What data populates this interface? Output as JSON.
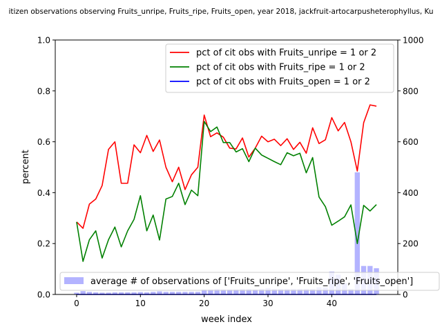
{
  "chart_data": {
    "type": "line",
    "title": "itizen observations observing Fruits_unripe, Fruits_ripe, Fruits_open, year 2018, jackfruit-artocarpusheterophyllus, Ku",
    "xlabel": "week index",
    "ylabel": "percent",
    "xlim": [
      -3.35,
      50.35
    ],
    "ylim": [
      0,
      1
    ],
    "y2lim": [
      0,
      1000
    ],
    "x_ticks": [
      "0",
      "10",
      "20",
      "30",
      "40"
    ],
    "y_ticks": [
      "0.0",
      "0.2",
      "0.4",
      "0.6",
      "0.8",
      "1.0"
    ],
    "y2_ticks": [
      "0",
      "200",
      "400",
      "600",
      "800",
      "1000"
    ],
    "x_tick_values": [
      0,
      10,
      20,
      30,
      40
    ],
    "y_tick_values": [
      0,
      0.2,
      0.4,
      0.6,
      0.8,
      1.0
    ],
    "y2_tick_values": [
      0,
      200,
      400,
      600,
      800,
      1000
    ],
    "legend_position": "top-right",
    "bar_legend_position": "bottom",
    "series": [
      {
        "name": "pct of cit obs with Fruits_unripe = 1 or 2",
        "color": "#ff0000",
        "values": [
          0.285,
          0.26,
          0.355,
          0.375,
          0.428,
          0.57,
          0.6,
          0.437,
          0.437,
          0.588,
          0.557,
          0.625,
          0.562,
          0.607,
          0.5,
          0.443,
          0.5,
          0.412,
          0.47,
          0.5,
          0.705,
          0.62,
          0.635,
          0.618,
          0.575,
          0.572,
          0.615,
          0.54,
          0.575,
          0.622,
          0.6,
          0.61,
          0.585,
          0.612,
          0.57,
          0.598,
          0.555,
          0.655,
          0.593,
          0.608,
          0.695,
          0.643,
          0.676,
          0.6,
          0.485,
          0.675,
          0.745,
          0.74
        ]
      },
      {
        "name": "pct of cit obs with Fruits_ripe = 1 or 2",
        "color": "#008000",
        "values": [
          0.285,
          0.13,
          0.215,
          0.25,
          0.143,
          0.215,
          0.265,
          0.187,
          0.25,
          0.295,
          0.388,
          0.25,
          0.312,
          0.214,
          0.375,
          0.385,
          0.437,
          0.353,
          0.41,
          0.388,
          0.68,
          0.64,
          0.658,
          0.597,
          0.597,
          0.56,
          0.573,
          0.522,
          0.575,
          0.548,
          0.535,
          0.522,
          0.51,
          0.557,
          0.545,
          0.555,
          0.478,
          0.538,
          0.383,
          0.345,
          0.272,
          0.288,
          0.305,
          0.352,
          0.2,
          0.35,
          0.328,
          0.353
        ]
      },
      {
        "name": "pct of cit obs with Fruits_open = 1 or 2",
        "color": "#0000ff",
        "values": [
          0,
          0,
          0,
          0,
          0,
          0,
          0,
          0,
          0,
          0,
          0,
          0,
          0,
          0,
          0,
          0,
          0,
          0,
          0,
          0,
          0,
          0,
          0,
          0,
          0,
          0,
          0,
          0,
          0,
          0,
          0,
          0,
          0,
          0,
          0,
          0,
          0,
          0,
          0,
          0,
          0,
          0,
          0,
          0,
          0,
          0,
          0,
          0
        ]
      }
    ],
    "bars": {
      "name": "average # of observations of ['Fruits_unripe', 'Fruits_ripe', 'Fruits_open']",
      "color": "#b3b3ff",
      "values": [
        7,
        13,
        10,
        8,
        7,
        7,
        8,
        8,
        8,
        8,
        9,
        8,
        10,
        12,
        10,
        10,
        10,
        10,
        10,
        10,
        20,
        20,
        22,
        20,
        20,
        20,
        22,
        22,
        20,
        22,
        25,
        22,
        22,
        22,
        22,
        22,
        22,
        22,
        28,
        28,
        90,
        78,
        45,
        22,
        480,
        112,
        112,
        103
      ]
    }
  }
}
